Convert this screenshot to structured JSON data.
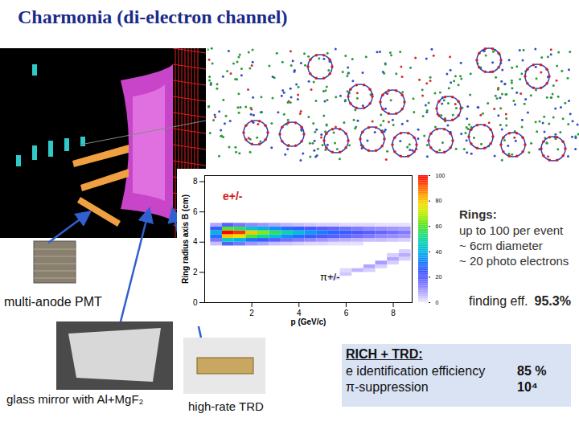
{
  "title": "Charmonia (di-electron channel)",
  "chart_data": {
    "type": "heatmap",
    "x_label": "p (GeV/c)",
    "y_label": "Ring radius axis B (cm)",
    "xlim": [
      0,
      8.8
    ],
    "ylim": [
      0,
      8.4
    ],
    "xticks": [
      2,
      4,
      6,
      8
    ],
    "yticks": [
      0,
      2,
      4,
      6,
      8
    ],
    "annotations": [
      "e+/-",
      "π+/-"
    ],
    "colorbar": {
      "range": [
        0,
        100
      ],
      "ticks": [
        0,
        20,
        40,
        60,
        80,
        100
      ]
    },
    "cells": [
      [
        0.5,
        3.875,
        5
      ],
      [
        0.5,
        4.125,
        15
      ],
      [
        0.5,
        4.375,
        30
      ],
      [
        0.5,
        4.625,
        40
      ],
      [
        0.5,
        4.875,
        25
      ],
      [
        0.5,
        5.125,
        8
      ],
      [
        1.0,
        3.875,
        20
      ],
      [
        1.0,
        4.125,
        45
      ],
      [
        1.0,
        4.375,
        80
      ],
      [
        1.0,
        4.625,
        100
      ],
      [
        1.0,
        4.875,
        60
      ],
      [
        1.0,
        5.125,
        20
      ],
      [
        1.5,
        3.875,
        15
      ],
      [
        1.5,
        4.125,
        40
      ],
      [
        1.5,
        4.375,
        75
      ],
      [
        1.5,
        4.625,
        95
      ],
      [
        1.5,
        4.875,
        55
      ],
      [
        1.5,
        5.125,
        15
      ],
      [
        2.0,
        3.875,
        10
      ],
      [
        2.0,
        4.125,
        30
      ],
      [
        2.0,
        4.375,
        60
      ],
      [
        2.0,
        4.625,
        80
      ],
      [
        2.0,
        4.875,
        45
      ],
      [
        2.0,
        5.125,
        12
      ],
      [
        2.5,
        3.875,
        8
      ],
      [
        2.5,
        4.125,
        25
      ],
      [
        2.5,
        4.375,
        50
      ],
      [
        2.5,
        4.625,
        65
      ],
      [
        2.5,
        4.875,
        40
      ],
      [
        2.5,
        5.125,
        10
      ],
      [
        3.0,
        3.875,
        5
      ],
      [
        3.0,
        4.125,
        20
      ],
      [
        3.0,
        4.375,
        42
      ],
      [
        3.0,
        4.625,
        55
      ],
      [
        3.0,
        4.875,
        35
      ],
      [
        3.0,
        5.125,
        8
      ],
      [
        3.5,
        3.875,
        4
      ],
      [
        3.5,
        4.125,
        16
      ],
      [
        3.5,
        4.375,
        35
      ],
      [
        3.5,
        4.625,
        48
      ],
      [
        3.5,
        4.875,
        30
      ],
      [
        3.5,
        5.125,
        6
      ],
      [
        4.0,
        3.875,
        3
      ],
      [
        4.0,
        4.125,
        14
      ],
      [
        4.0,
        4.375,
        30
      ],
      [
        4.0,
        4.625,
        42
      ],
      [
        4.0,
        4.875,
        26
      ],
      [
        4.0,
        5.125,
        5
      ],
      [
        4.5,
        3.875,
        2
      ],
      [
        4.5,
        4.125,
        12
      ],
      [
        4.5,
        4.375,
        26
      ],
      [
        4.5,
        4.625,
        36
      ],
      [
        4.5,
        4.875,
        22
      ],
      [
        4.5,
        5.125,
        4
      ],
      [
        5.0,
        3.875,
        2
      ],
      [
        5.0,
        4.125,
        10
      ],
      [
        5.0,
        4.375,
        22
      ],
      [
        5.0,
        4.625,
        32
      ],
      [
        5.0,
        4.875,
        20
      ],
      [
        5.0,
        5.125,
        3
      ],
      [
        5.5,
        3.875,
        1
      ],
      [
        5.5,
        4.125,
        8
      ],
      [
        5.5,
        4.375,
        20
      ],
      [
        5.5,
        4.625,
        28
      ],
      [
        5.5,
        4.875,
        18
      ],
      [
        5.5,
        5.125,
        3
      ],
      [
        6.0,
        3.875,
        1
      ],
      [
        6.0,
        4.125,
        7
      ],
      [
        6.0,
        4.375,
        18
      ],
      [
        6.0,
        4.625,
        25
      ],
      [
        6.0,
        4.875,
        16
      ],
      [
        6.0,
        5.125,
        2
      ],
      [
        6.5,
        3.875,
        1
      ],
      [
        6.5,
        4.125,
        6
      ],
      [
        6.5,
        4.375,
        16
      ],
      [
        6.5,
        4.625,
        22
      ],
      [
        6.5,
        4.875,
        14
      ],
      [
        6.5,
        5.125,
        2
      ],
      [
        7.0,
        4.125,
        5
      ],
      [
        7.0,
        4.375,
        14
      ],
      [
        7.0,
        4.625,
        20
      ],
      [
        7.0,
        4.875,
        12
      ],
      [
        7.0,
        5.125,
        2
      ],
      [
        7.5,
        4.125,
        5
      ],
      [
        7.5,
        4.375,
        12
      ],
      [
        7.5,
        4.625,
        18
      ],
      [
        7.5,
        4.875,
        11
      ],
      [
        7.5,
        5.125,
        1
      ],
      [
        8.0,
        4.125,
        4
      ],
      [
        8.0,
        4.375,
        11
      ],
      [
        8.0,
        4.625,
        16
      ],
      [
        8.0,
        4.875,
        10
      ],
      [
        8.0,
        5.125,
        1
      ],
      [
        8.5,
        4.125,
        3
      ],
      [
        8.5,
        4.375,
        10
      ],
      [
        8.5,
        4.625,
        14
      ],
      [
        8.5,
        4.875,
        9
      ],
      [
        8.5,
        5.125,
        1
      ],
      [
        5.5,
        1.625,
        2
      ],
      [
        6.0,
        1.875,
        4
      ],
      [
        6.0,
        2.125,
        2
      ],
      [
        6.5,
        2.125,
        6
      ],
      [
        7.0,
        2.125,
        3
      ],
      [
        7.0,
        2.375,
        8
      ],
      [
        7.5,
        2.375,
        3
      ],
      [
        7.5,
        2.625,
        9
      ],
      [
        8.0,
        2.625,
        3
      ],
      [
        8.0,
        2.875,
        8
      ],
      [
        8.0,
        3.125,
        3
      ],
      [
        8.5,
        2.875,
        3
      ],
      [
        8.5,
        3.125,
        7
      ],
      [
        8.5,
        3.375,
        3
      ]
    ]
  },
  "rings": {
    "heading": "Rings:",
    "lines": [
      "up to 100 per event",
      "~ 6cm diameter",
      "~ 20 photo electrons"
    ]
  },
  "finding": {
    "label": "finding eff.",
    "value": "95.3%"
  },
  "components": {
    "pmt": "multi-anode PMT",
    "mirror": "glass mirror with Al+MgF₂",
    "trd": "high-rate TRD"
  },
  "box": {
    "heading": "RICH + TRD:",
    "rows": [
      [
        "e identification efficiency",
        "85 %"
      ],
      [
        "π-suppression",
        "10⁴"
      ]
    ]
  }
}
